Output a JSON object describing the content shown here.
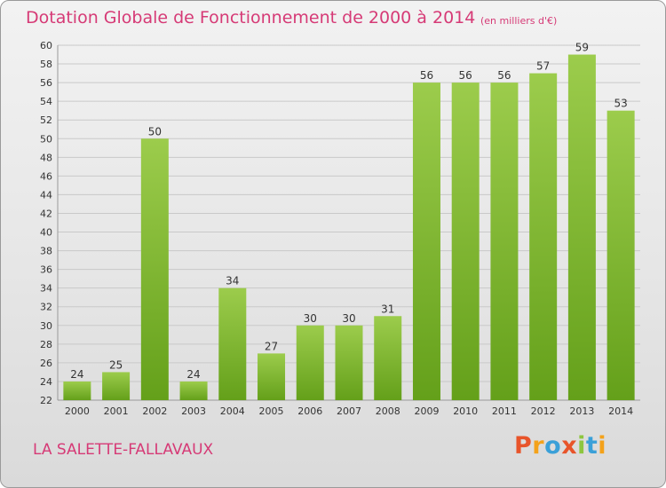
{
  "header": {
    "title": "Dotation Globale de Fonctionnement de 2000 à 2014",
    "subtitle": "(en milliers d'€)"
  },
  "footer": {
    "commune": "LA SALETTE-FALLAVAUX",
    "logo_text": "Proxiti",
    "logo_colors": [
      "#e8542a",
      "#f4a21a",
      "#3aa0d8",
      "#e8542a",
      "#8dc63f",
      "#3aa0d8",
      "#f4a21a"
    ]
  },
  "colors": {
    "title": "#d63a76",
    "bar_light": "#9ccc4c",
    "bar_dark": "#64a01a",
    "grid": "#c9c9c9",
    "axis_text": "#333333"
  },
  "chart_data": {
    "type": "bar",
    "categories": [
      "2000",
      "2001",
      "2002",
      "2003",
      "2004",
      "2005",
      "2006",
      "2007",
      "2008",
      "2009",
      "2010",
      "2011",
      "2012",
      "2013",
      "2014"
    ],
    "values": [
      24,
      25,
      50,
      24,
      34,
      27,
      30,
      30,
      31,
      56,
      56,
      56,
      57,
      59,
      53
    ],
    "title": "Dotation Globale de Fonctionnement de 2000 à 2014",
    "subtitle": "(en milliers d'€)",
    "xlabel": "",
    "ylabel": "",
    "ylim": [
      22,
      60
    ],
    "yticks": [
      22,
      24,
      26,
      28,
      30,
      32,
      34,
      36,
      38,
      40,
      42,
      44,
      46,
      48,
      50,
      52,
      54,
      56,
      58,
      60
    ],
    "grid": true,
    "data_labels": true
  }
}
